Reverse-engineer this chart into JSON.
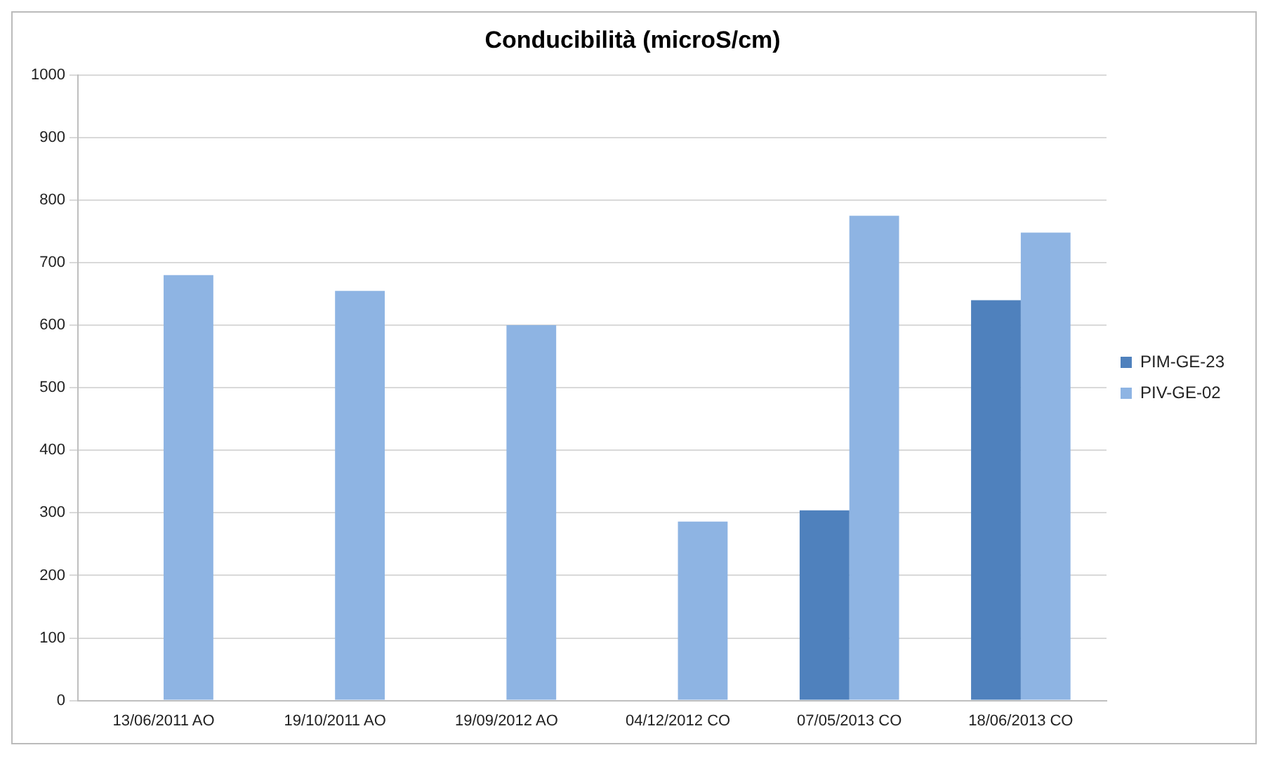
{
  "chart_data": {
    "type": "bar",
    "title": "Conducibilità (microS/cm)",
    "categories": [
      "13/06/2011 AO",
      "19/10/2011 AO",
      "19/09/2012 AO",
      "04/12/2012 CO",
      "07/05/2013 CO",
      "18/06/2013 CO"
    ],
    "series": [
      {
        "name": "PIM-GE-23",
        "color": "#4f81bd",
        "values": [
          null,
          null,
          null,
          null,
          304,
          640
        ]
      },
      {
        "name": "PIV-GE-02",
        "color": "#8eb4e3",
        "values": [
          680,
          655,
          600,
          286,
          775,
          748
        ]
      }
    ],
    "ylim": [
      0,
      1000
    ],
    "yticks": [
      0,
      100,
      200,
      300,
      400,
      500,
      600,
      700,
      800,
      900,
      1000
    ],
    "grid": "y",
    "legend": "right"
  }
}
